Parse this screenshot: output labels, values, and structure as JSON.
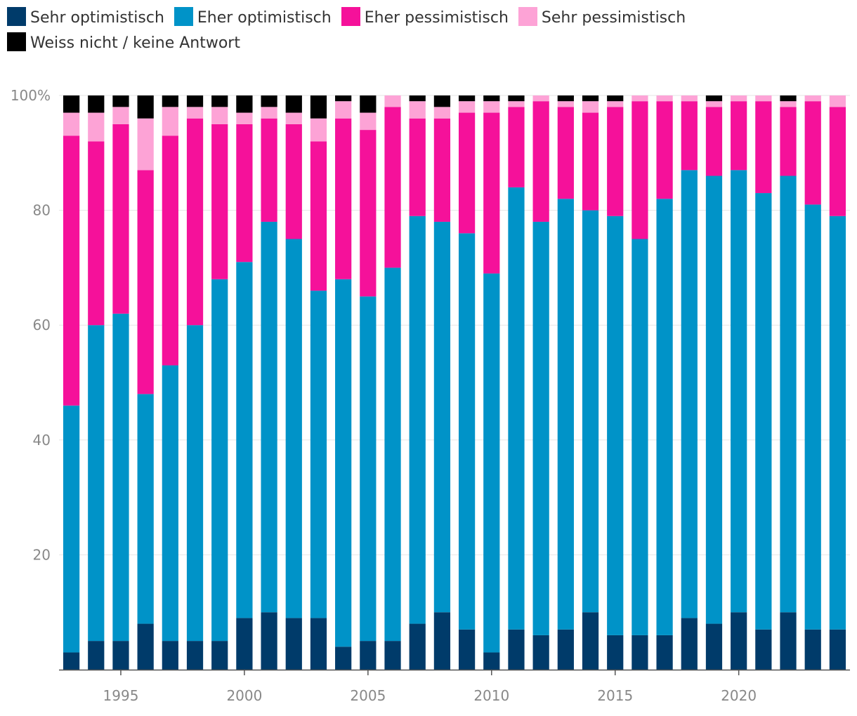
{
  "chart_data": {
    "type": "bar",
    "stacked": true,
    "x": [
      1993,
      1994,
      1995,
      1996,
      1997,
      1998,
      1999,
      2000,
      2001,
      2002,
      2003,
      2004,
      2005,
      2006,
      2007,
      2008,
      2009,
      2010,
      2011,
      2012,
      2013,
      2014,
      2015,
      2016,
      2017,
      2018,
      2019,
      2020,
      2021,
      2022,
      2023,
      2024
    ],
    "series": [
      {
        "name": "Sehr optimistisch",
        "color": "#003b6a",
        "values": [
          3,
          5,
          5,
          8,
          5,
          5,
          5,
          9,
          10,
          9,
          9,
          4,
          5,
          5,
          8,
          10,
          7,
          3,
          7,
          6,
          7,
          10,
          6,
          6,
          6,
          9,
          8,
          10,
          7,
          10,
          7,
          7
        ]
      },
      {
        "name": "Eher optimistisch",
        "color": "#0093c8",
        "values": [
          43,
          55,
          57,
          40,
          48,
          55,
          63,
          62,
          68,
          66,
          57,
          64,
          60,
          65,
          71,
          68,
          69,
          66,
          77,
          72,
          75,
          70,
          73,
          69,
          76,
          78,
          78,
          77,
          76,
          76,
          74,
          72
        ]
      },
      {
        "name": "Eher pessimistisch",
        "color": "#f5119a",
        "values": [
          47,
          32,
          33,
          39,
          40,
          36,
          27,
          24,
          18,
          20,
          26,
          28,
          29,
          28,
          17,
          18,
          21,
          28,
          14,
          21,
          16,
          17,
          19,
          24,
          17,
          12,
          12,
          12,
          16,
          12,
          18,
          19
        ]
      },
      {
        "name": "Sehr pessimistisch",
        "color": "#fda3d6",
        "values": [
          4,
          5,
          3,
          9,
          5,
          2,
          3,
          2,
          2,
          2,
          4,
          3,
          3,
          2,
          3,
          2,
          2,
          2,
          1,
          1,
          1,
          2,
          1,
          1,
          1,
          1,
          1,
          1,
          1,
          1,
          1,
          2
        ]
      },
      {
        "name": "Weiss nicht / keine Antwort",
        "color": "#000000",
        "values": [
          3,
          3,
          2,
          4,
          2,
          2,
          2,
          3,
          2,
          3,
          4,
          1,
          3,
          0,
          1,
          2,
          1,
          1,
          1,
          0,
          1,
          1,
          1,
          0,
          0,
          0,
          1,
          0,
          0,
          1,
          0,
          0
        ]
      }
    ],
    "xlabel": "",
    "ylabel": "",
    "ylim": [
      0,
      100
    ],
    "yticks": [
      "20",
      "40",
      "60",
      "80",
      "100%"
    ],
    "xticks": [
      "1995",
      "2000",
      "2005",
      "2010",
      "2015",
      "2020"
    ],
    "grid": true,
    "legend_position": "top"
  }
}
